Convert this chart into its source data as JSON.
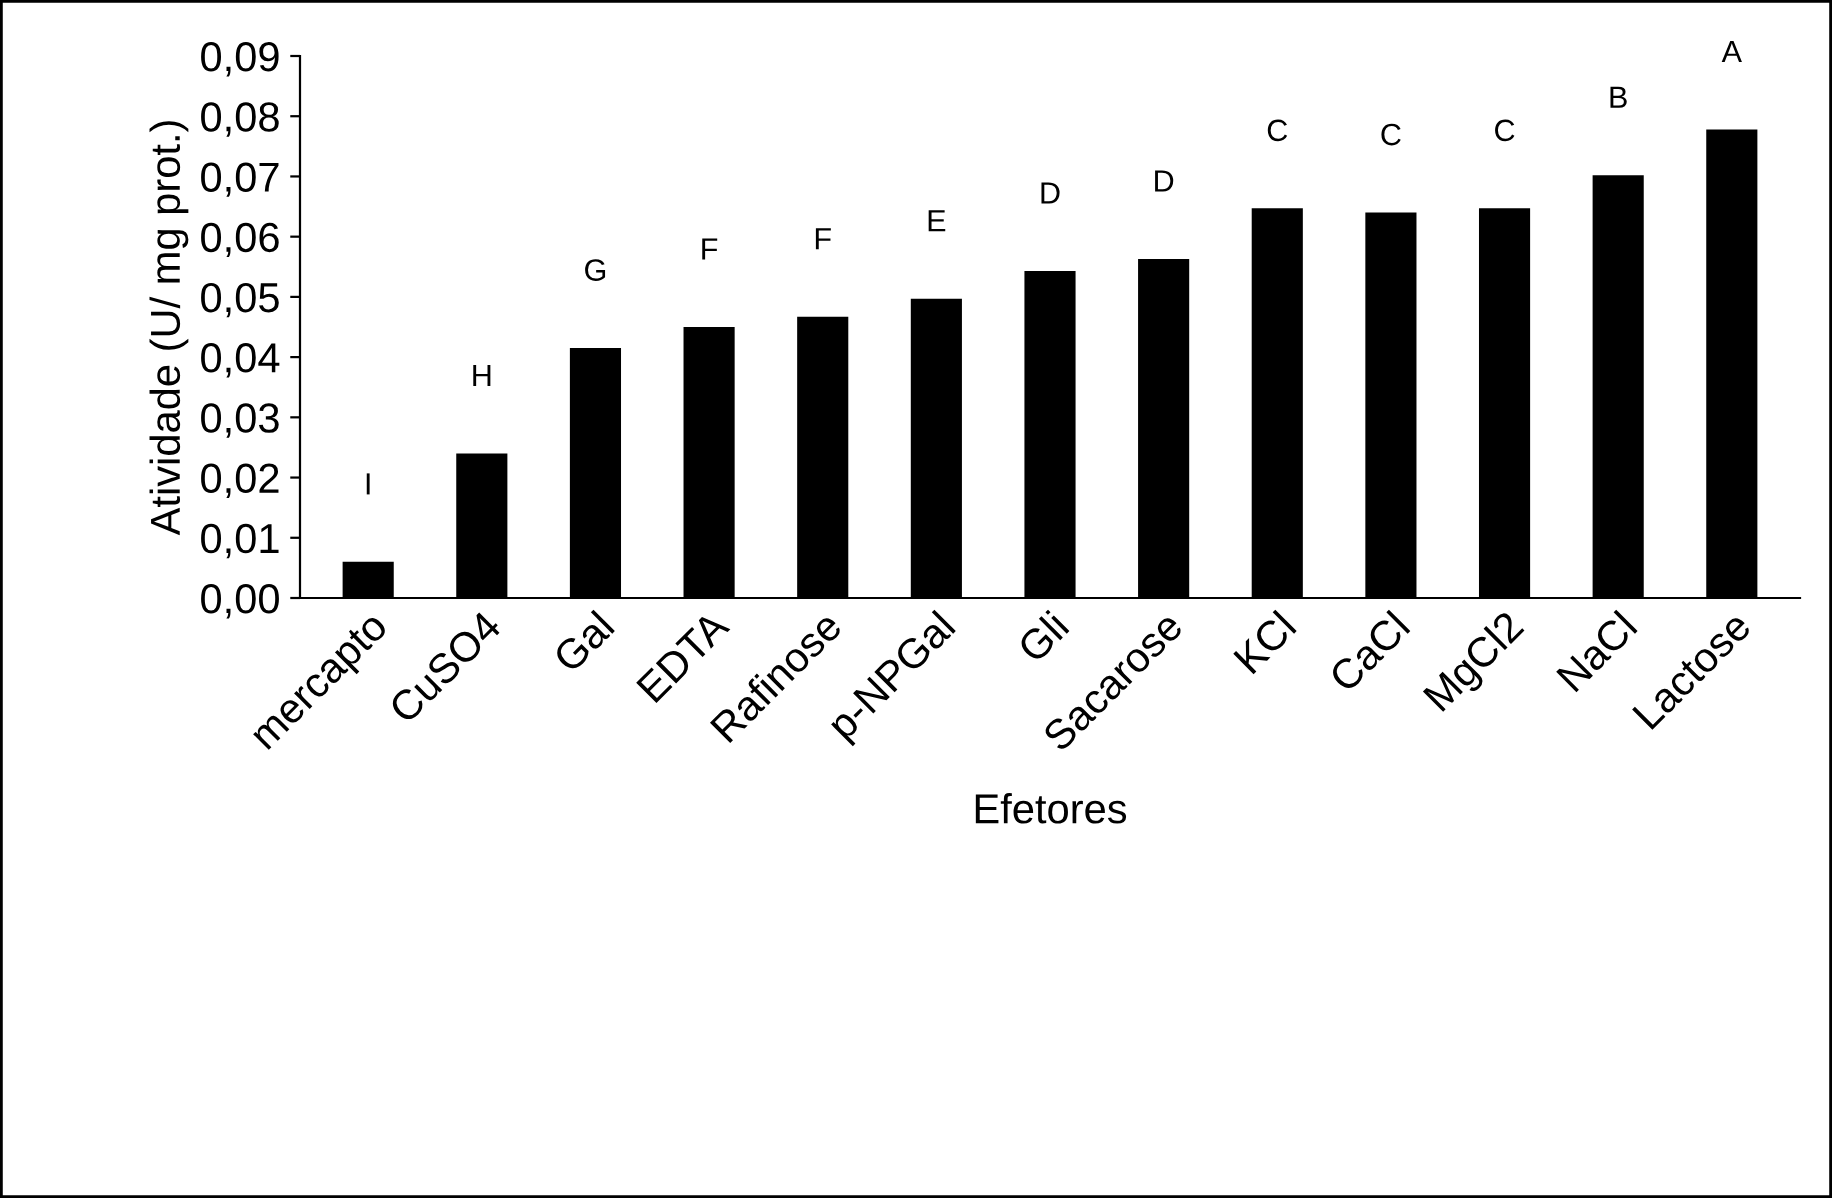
{
  "chart_data": {
    "type": "bar",
    "xlabel": "Efetores",
    "ylabel": "Atividade (U/ mg prot.)",
    "categories": [
      "mercapto",
      "CuSO4",
      "Gal",
      "EDTA",
      "Rafinose",
      "p-NPGal",
      "Gli",
      "Sacarose",
      "KCl",
      "CaCl",
      "MgCl2",
      "NaCl",
      "Lactose"
    ],
    "values": [
      0.006,
      0.024,
      0.0415,
      0.045,
      0.0467,
      0.0497,
      0.0543,
      0.0563,
      0.0647,
      0.064,
      0.0647,
      0.0702,
      0.0778
    ],
    "color": "#000000",
    "ylim": [
      0,
      0.09
    ],
    "yticks": [
      {
        "value": 0,
        "label": "0,00"
      },
      {
        "value": 0.01,
        "label": "0,01"
      },
      {
        "value": 0.02,
        "label": "0,02"
      },
      {
        "value": 0.03,
        "label": "0,03"
      },
      {
        "value": 0.04,
        "label": "0,04"
      },
      {
        "value": 0.05,
        "label": "0,05"
      },
      {
        "value": 0.06,
        "label": "0,06"
      },
      {
        "value": 0.07,
        "label": "0,07"
      },
      {
        "value": 0.08,
        "label": "0,08"
      },
      {
        "value": 0.09,
        "label": "0,09"
      }
    ],
    "grid": false,
    "legend": false,
    "annotations": [
      "I",
      "H",
      "G",
      "F",
      "F",
      "E",
      "D",
      "D",
      "C",
      "C",
      "C",
      "B",
      "A"
    ]
  }
}
